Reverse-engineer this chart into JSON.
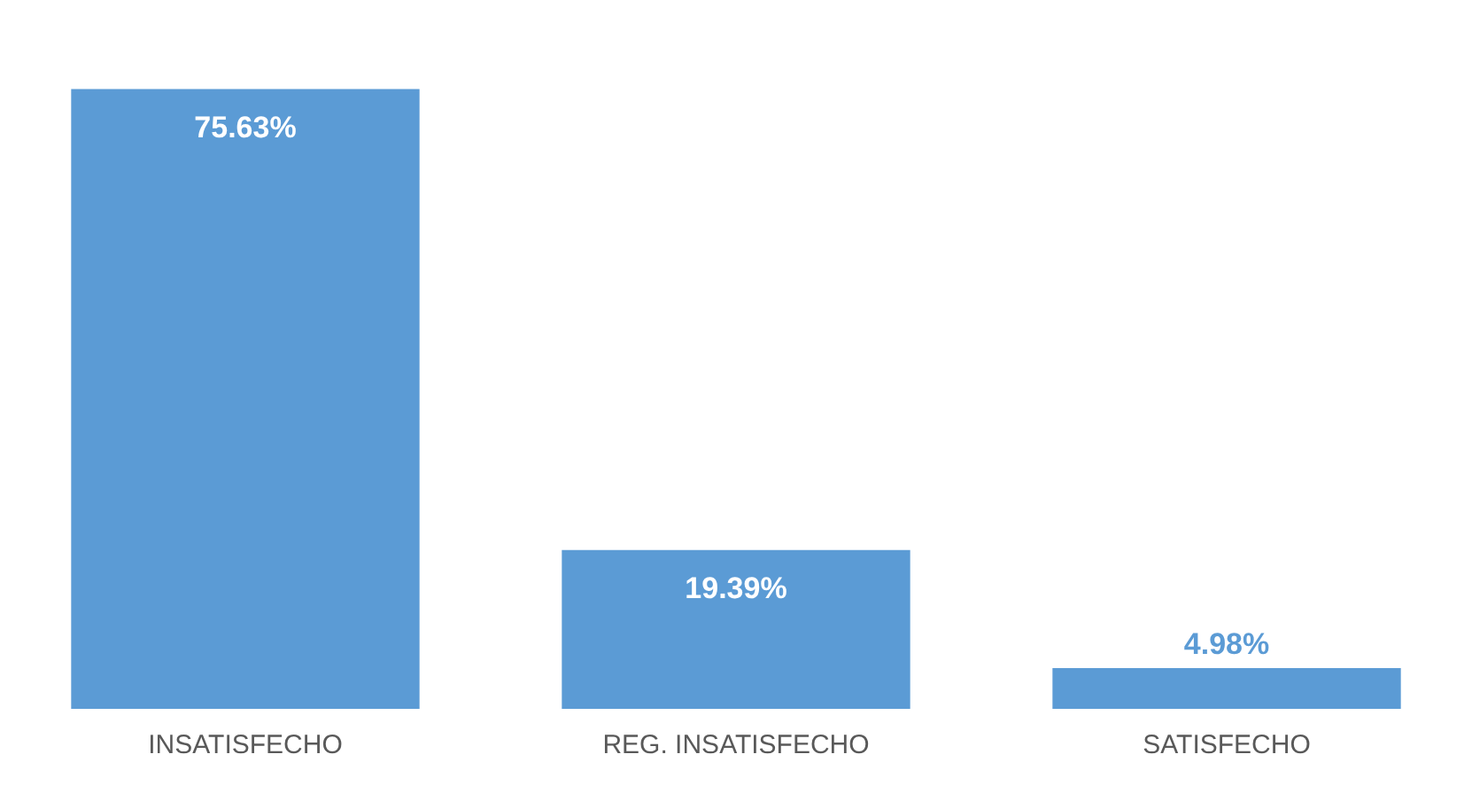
{
  "chart_data": {
    "type": "bar",
    "categories": [
      "INSATISFECHO",
      "REG. INSATISFECHO",
      "SATISFECHO"
    ],
    "values": [
      75.63,
      19.39,
      4.98
    ],
    "value_labels": [
      "75.63%",
      "19.39%",
      "4.98%"
    ],
    "color": "#5b9bd5",
    "grid": false,
    "legend": false
  }
}
